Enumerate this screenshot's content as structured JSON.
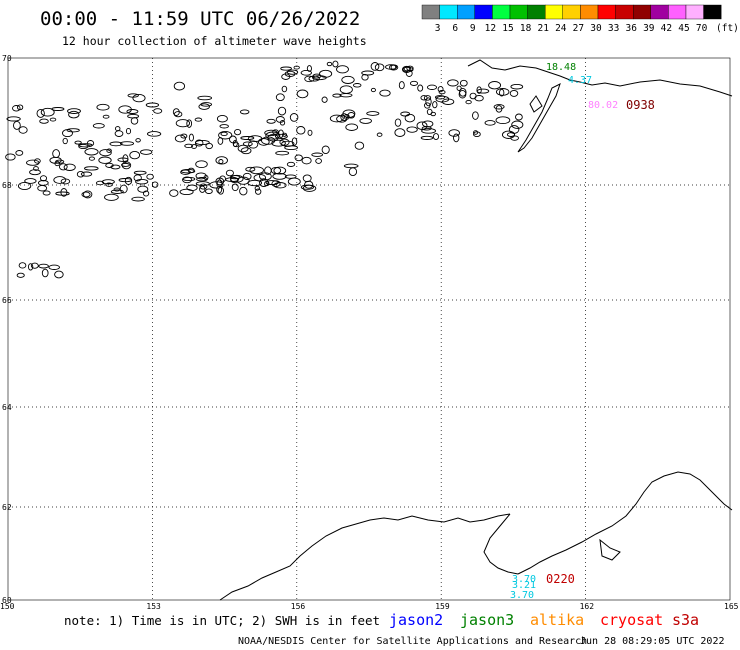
{
  "header": {
    "title": "00:00 - 11:59 UTC 06/26/2022",
    "subtitle": "12 hour collection of altimeter wave heights"
  },
  "legend": {
    "unit": "(ft)",
    "swatches": [
      {
        "label": "3",
        "color": "#808080"
      },
      {
        "label": "6",
        "color": "#00e8ff"
      },
      {
        "label": "9",
        "color": "#00a0ff"
      },
      {
        "label": "12",
        "color": "#0000ff"
      },
      {
        "label": "15",
        "color": "#00ff40"
      },
      {
        "label": "18",
        "color": "#00c000"
      },
      {
        "label": "21",
        "color": "#008000"
      },
      {
        "label": "24",
        "color": "#ffff00"
      },
      {
        "label": "27",
        "color": "#ffd000"
      },
      {
        "label": "30",
        "color": "#ff8c00"
      },
      {
        "label": "33",
        "color": "#ff0000"
      },
      {
        "label": "36",
        "color": "#c80000"
      },
      {
        "label": "39",
        "color": "#900000"
      },
      {
        "label": "42",
        "color": "#a000a0"
      },
      {
        "label": "45",
        "color": "#ff60ff"
      },
      {
        "label": "70",
        "color": "#ffb0ff"
      },
      {
        "label": "",
        "color": "#000000"
      }
    ]
  },
  "map": {
    "lon_ticks": [
      "150",
      "153",
      "156",
      "159",
      "162",
      "165"
    ],
    "lat_ticks": [
      "70",
      "68",
      "66",
      "64",
      "62",
      "60"
    ]
  },
  "annotations": [
    {
      "text": "18.48",
      "color": "#008000"
    },
    {
      "text": "4.37",
      "color": "#00c8e0"
    },
    {
      "text": "80.02",
      "color": "#ff80ff"
    },
    {
      "text": "0938",
      "color": "#800000"
    },
    {
      "text": "3.70",
      "color": "#00c8e0"
    },
    {
      "text": "3.21",
      "color": "#00c8e0"
    },
    {
      "text": "3.70",
      "color": "#00c8e0"
    },
    {
      "text": "0220",
      "color": "#c00000"
    }
  ],
  "footer": {
    "note": "note: 1) Time is in UTC; 2) SWH is in feet",
    "satellites": [
      {
        "name": "jason2",
        "color": "#0000ff"
      },
      {
        "name": "jason3",
        "color": "#008000"
      },
      {
        "name": "altika",
        "color": "#ff8c00"
      },
      {
        "name": "cryosat",
        "color": "#ff0000"
      },
      {
        "name": "s3a",
        "color": "#c00000"
      }
    ],
    "credit": "NOAA/NESDIS Center for Satellite Applications and Research",
    "timestamp": "Jun 28 08:29:05 UTC 2022"
  }
}
